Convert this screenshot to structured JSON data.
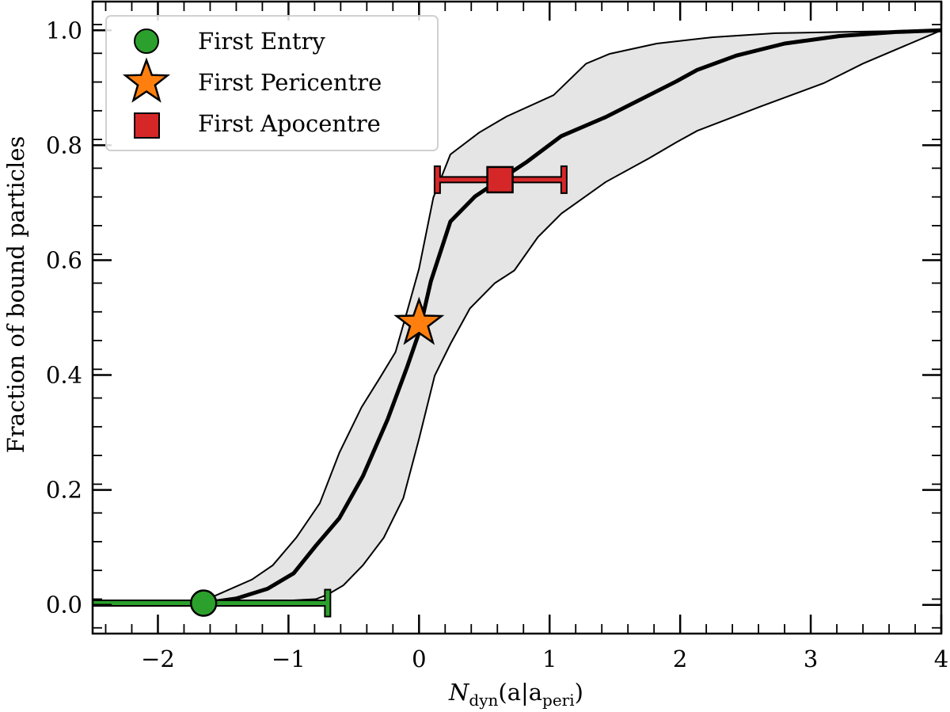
{
  "chart_data": {
    "type": "line",
    "title": "",
    "xlabel": "N_dyn(a|a_peri)",
    "xlabel_parts": {
      "main": "N",
      "sub1": "dyn",
      "mid": "(a|a",
      "sub2": "peri",
      "end": ")"
    },
    "ylabel": "Fraction of bound particles",
    "xlim": [
      -2.5,
      4.0
    ],
    "ylim": [
      -0.05,
      1.05
    ],
    "xticks": [
      -2,
      -1,
      0,
      1,
      2,
      3,
      4
    ],
    "xtick_labels": [
      "−2",
      "−1",
      "0",
      "1",
      "2",
      "3",
      "4"
    ],
    "yticks": [
      0.0,
      0.2,
      0.4,
      0.6,
      0.8,
      1.0
    ],
    "ytick_labels": [
      "0.0",
      "0.2",
      "0.4",
      "0.6",
      "0.8",
      "1.0"
    ],
    "grid": false,
    "legend_position": "upper left",
    "series": [
      {
        "name": "median",
        "style": "thick black line",
        "color": "#000000",
        "x": [
          -1.65,
          -1.4,
          -1.16,
          -0.96,
          -0.79,
          -0.61,
          -0.43,
          -0.24,
          -0.09,
          0.0,
          0.09,
          0.24,
          0.43,
          0.62,
          0.82,
          1.09,
          1.43,
          1.7,
          1.97,
          2.13,
          2.43,
          2.8,
          3.22,
          3.65,
          4.0
        ],
        "y": [
          0.003,
          0.011,
          0.028,
          0.055,
          0.103,
          0.151,
          0.224,
          0.323,
          0.415,
          0.474,
          0.563,
          0.667,
          0.711,
          0.74,
          0.77,
          0.816,
          0.849,
          0.88,
          0.911,
          0.931,
          0.956,
          0.977,
          0.99,
          0.997,
          1.0
        ]
      },
      {
        "name": "upper band",
        "style": "thin black line (shaded band top)",
        "color": "#000000",
        "x": [
          -1.65,
          -1.28,
          -1.12,
          -0.94,
          -0.76,
          -0.61,
          -0.44,
          -0.3,
          -0.18,
          -0.09,
          0.0,
          0.11,
          0.24,
          0.46,
          0.67,
          1.03,
          1.28,
          1.46,
          1.82,
          2.25,
          2.73,
          3.22,
          4.0
        ],
        "y": [
          0.007,
          0.044,
          0.069,
          0.117,
          0.177,
          0.265,
          0.344,
          0.395,
          0.44,
          0.512,
          0.585,
          0.709,
          0.784,
          0.822,
          0.85,
          0.887,
          0.942,
          0.959,
          0.977,
          0.988,
          0.995,
          0.997,
          1.0
        ]
      },
      {
        "name": "lower band",
        "style": "thin black line (shaded band bottom)",
        "color": "#000000",
        "x": [
          -1.65,
          -0.79,
          -0.7,
          -0.58,
          -0.43,
          -0.27,
          -0.12,
          0.0,
          0.12,
          0.24,
          0.39,
          0.58,
          0.73,
          0.91,
          1.09,
          1.43,
          1.76,
          1.97,
          2.13,
          2.61,
          3.1,
          3.4,
          4.0
        ],
        "y": [
          0.0,
          0.01,
          0.018,
          0.034,
          0.069,
          0.117,
          0.186,
          0.289,
          0.399,
          0.454,
          0.516,
          0.56,
          0.582,
          0.64,
          0.681,
          0.736,
          0.777,
          0.805,
          0.825,
          0.867,
          0.908,
          0.942,
          1.0
        ]
      }
    ],
    "band_fill_color": "#e5e5e5",
    "markers": [
      {
        "name": "First Entry",
        "shape": "circle",
        "color": "#2ca02c",
        "x": -1.65,
        "y": 0.003,
        "xerr_low": -2.6,
        "xerr_high": -0.7
      },
      {
        "name": "First Pericentre",
        "shape": "star",
        "color": "#ff7f0e",
        "x": 0.0,
        "y": 0.49
      },
      {
        "name": "First Apocentre",
        "shape": "square",
        "color": "#d62728",
        "x": 0.62,
        "y": 0.74,
        "xerr_low": 0.14,
        "xerr_high": 1.11
      }
    ],
    "legend": [
      "First Entry",
      "First Pericentre",
      "First Apocentre"
    ]
  },
  "legend": {
    "items": [
      {
        "label": "First Entry",
        "icon": "green-circle-icon"
      },
      {
        "label": "First Pericentre",
        "icon": "orange-star-icon"
      },
      {
        "label": "First Apocentre",
        "icon": "red-square-icon"
      }
    ]
  },
  "axes": {
    "ylabel": "Fraction of bound particles",
    "xlabel_main": "N",
    "xlabel_sub1": "dyn",
    "xlabel_mid": "(a|a",
    "xlabel_sub2": "peri",
    "xlabel_end": ")"
  }
}
